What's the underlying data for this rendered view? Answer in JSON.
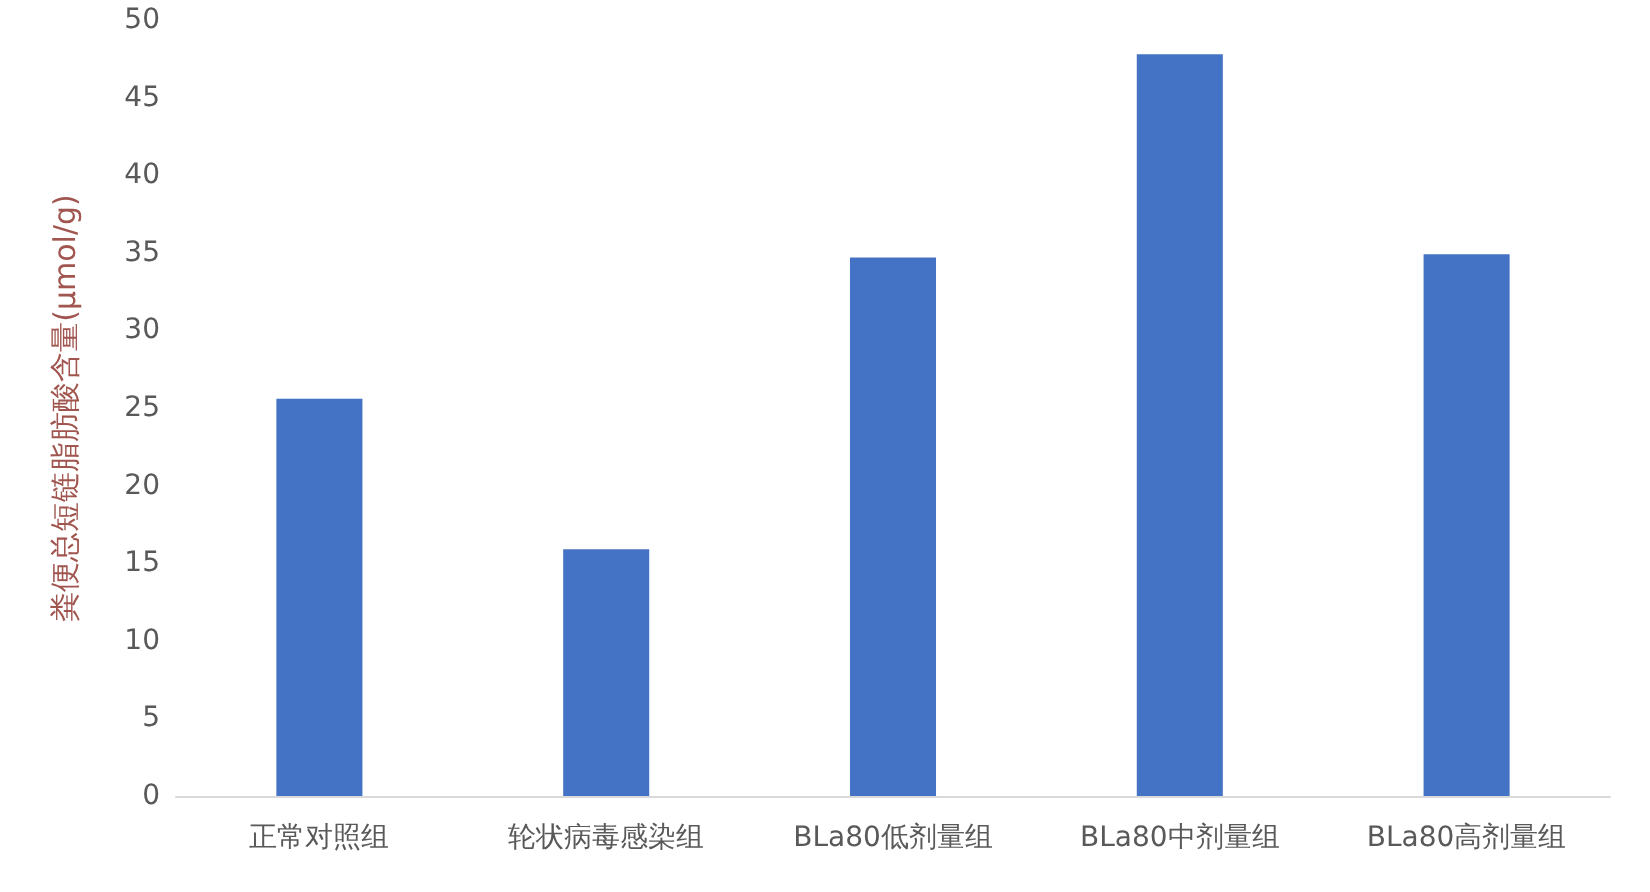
{
  "chart_data": {
    "type": "bar",
    "ylabel": "粪便总短链脂肪酸含量(μmol/g)",
    "categories": [
      "正常对照组",
      "轮状病毒感染组",
      "BLa80低剂量组",
      "BLa80中剂量组",
      "BLa80高剂量组"
    ],
    "values": [
      25.6,
      15.9,
      34.7,
      47.8,
      34.9
    ],
    "color": "#4472c4",
    "ylim": [
      0,
      50
    ],
    "yticks": [
      0,
      5,
      10,
      15,
      20,
      25,
      30,
      35,
      40,
      45,
      50
    ],
    "grid": false
  }
}
